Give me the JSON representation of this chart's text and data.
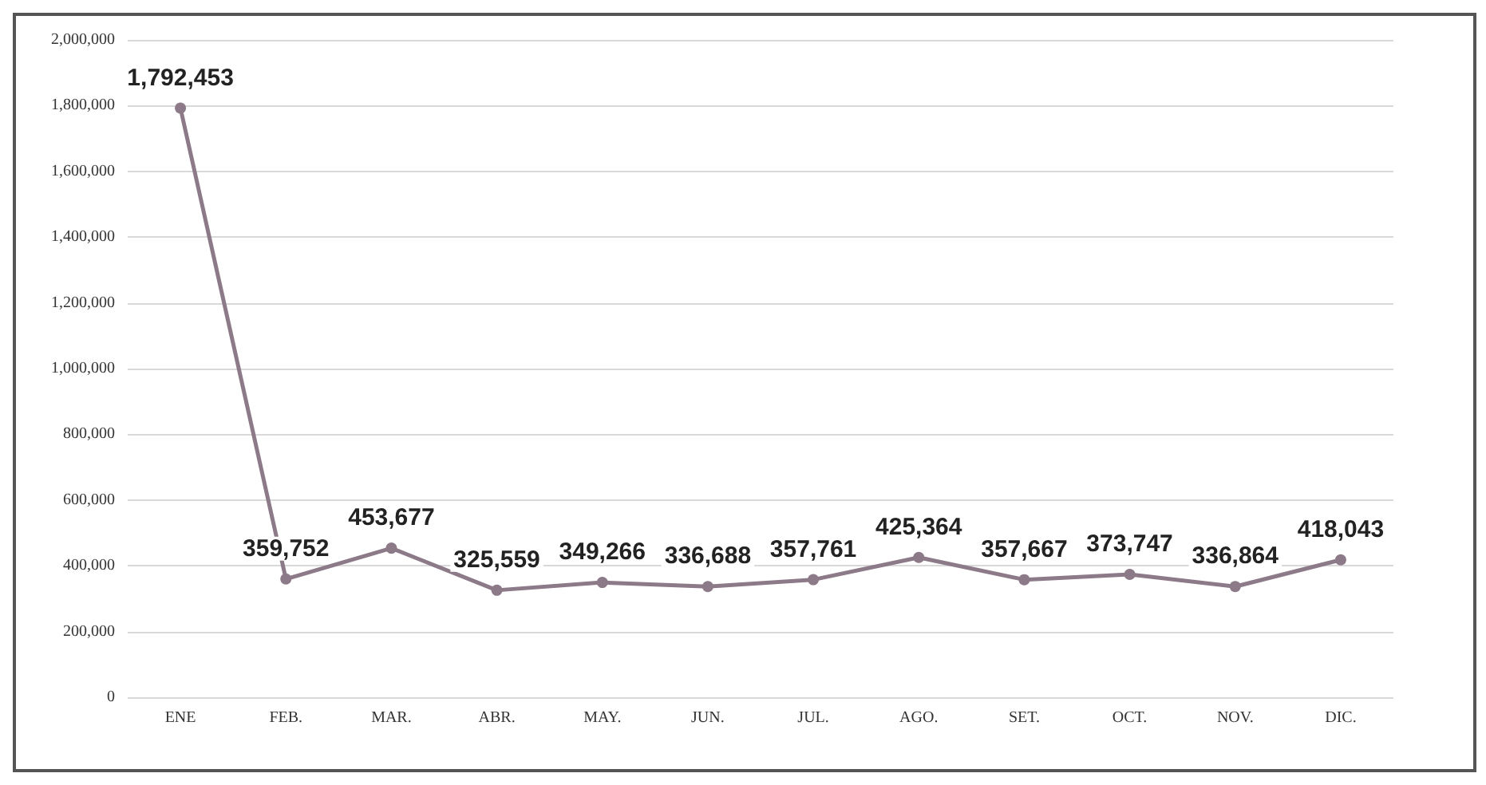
{
  "chart_data": {
    "type": "line",
    "categories": [
      "ENE",
      "FEB.",
      "MAR.",
      "ABR.",
      "MAY.",
      "JUN.",
      "JUL.",
      "AGO.",
      "SET.",
      "OCT.",
      "NOV.",
      "DIC."
    ],
    "series": [
      {
        "color": "#8c7a88",
        "values": [
          1792453,
          359752,
          453677,
          325559,
          349266,
          336688,
          357761,
          425364,
          357667,
          373747,
          336864,
          418043
        ],
        "value_labels": [
          "1,792,453",
          "359,752",
          "453,677",
          "325,559",
          "349,266",
          "336,688",
          "357,761",
          "425,364",
          "357,667",
          "373,747",
          "336,864",
          "418,043"
        ]
      }
    ],
    "ylim": [
      0,
      2000000
    ],
    "yticks": [
      0,
      {
        "value": 200000,
        "label": "200,000"
      },
      {
        "value": 400000,
        "label": "400,000"
      },
      {
        "value": 600000,
        "label": "600,000"
      },
      {
        "value": 800000,
        "label": "800,000"
      },
      {
        "value": 1000000,
        "label": "1,000,000"
      },
      {
        "value": 1200000,
        "label": "1,200,000"
      },
      {
        "value": 1400000,
        "label": "1,400,000"
      },
      {
        "value": 1600000,
        "label": "1,600,000"
      },
      {
        "value": 1800000,
        "label": "1,800,000"
      },
      {
        "value": 2000000,
        "label": "2,000,000"
      }
    ],
    "grid": "y",
    "marker": "circle"
  }
}
